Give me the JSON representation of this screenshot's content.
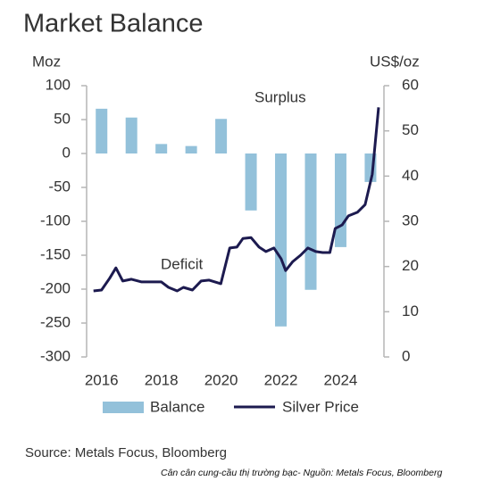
{
  "chart_data": {
    "type": "bar",
    "title": "Market Balance",
    "y_label": "Moz",
    "y2_label": "US$/oz",
    "annotations": [
      "Surplus",
      "Deficit"
    ],
    "source": "Source: Metals Focus, Bloomberg",
    "caption": "Cân cân cung-cầu thị trường bạc- Nguồn: Metals Focus, Bloomberg",
    "xlim": [
      2015.5,
      2025.45
    ],
    "xticks": [
      2016,
      2018,
      2020,
      2022,
      2024
    ],
    "ylim": [
      -300,
      100
    ],
    "yticks": [
      -300,
      -250,
      -200,
      -150,
      -100,
      -50,
      0,
      50,
      100
    ],
    "y2lim": [
      0,
      60
    ],
    "y2ticks": [
      0,
      10,
      20,
      30,
      40,
      50,
      60
    ],
    "series": [
      {
        "name": "Balance",
        "type": "bar",
        "color": "#93c1da",
        "x": [
          2016,
          2017,
          2018,
          2019,
          2020,
          2021,
          2022,
          2023,
          2024,
          2025
        ],
        "values": [
          66,
          53,
          14,
          11,
          51,
          -84,
          -255,
          -201,
          -138,
          -42
        ]
      },
      {
        "name": "Silver Price",
        "type": "line",
        "axis": "y2",
        "color": "#1c1a4f",
        "x": [
          2015.73,
          2016.0,
          2016.27,
          2016.48,
          2016.71,
          2017.0,
          2017.34,
          2017.7,
          2018.0,
          2018.24,
          2018.53,
          2018.74,
          2019.04,
          2019.33,
          2019.6,
          2019.99,
          2020.29,
          2020.53,
          2020.73,
          2021.0,
          2021.27,
          2021.5,
          2021.77,
          2022.01,
          2022.16,
          2022.4,
          2022.66,
          2022.9,
          2023.17,
          2023.4,
          2023.64,
          2023.82,
          2024.05,
          2024.26,
          2024.56,
          2024.82,
          2025.06,
          2025.27
        ],
        "values": [
          14.6,
          14.8,
          17.4,
          19.7,
          16.8,
          17.2,
          16.6,
          16.6,
          16.6,
          15.4,
          14.6,
          15.4,
          14.8,
          16.8,
          17.0,
          16.2,
          24.1,
          24.3,
          26.2,
          26.4,
          24.3,
          23.3,
          24.1,
          21.7,
          19.1,
          21.1,
          22.5,
          24.1,
          23.3,
          23.1,
          23.1,
          28.4,
          29.2,
          31.2,
          32.0,
          33.7,
          40.4,
          55.2
        ]
      }
    ]
  }
}
